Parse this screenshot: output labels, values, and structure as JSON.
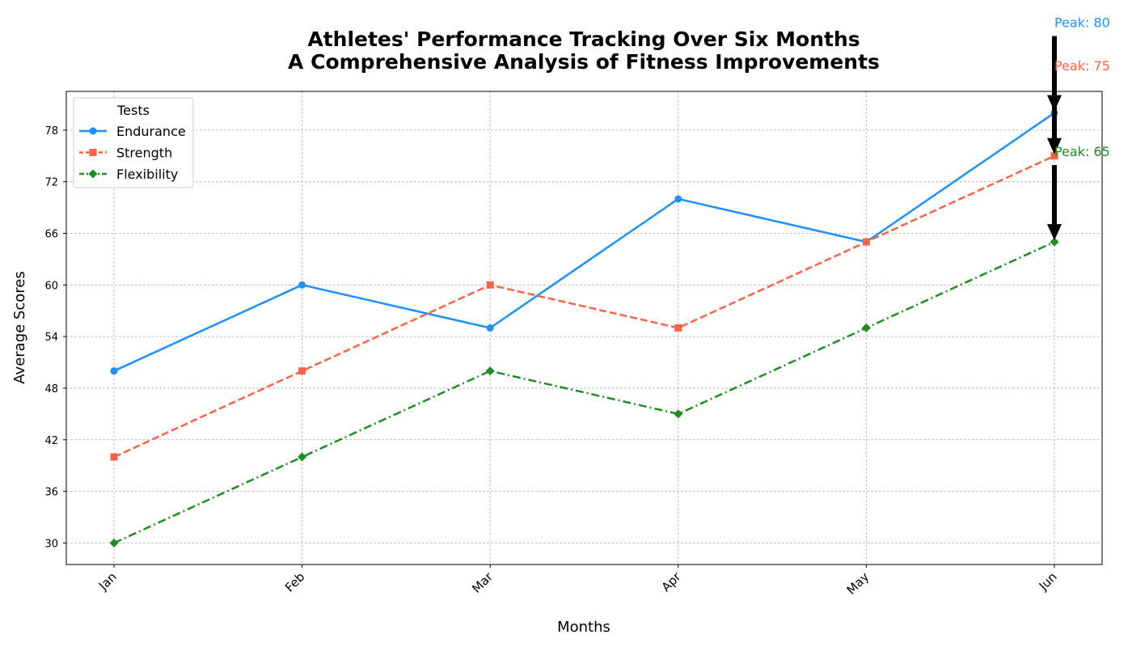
{
  "chart_data": {
    "type": "line",
    "title_line1": "Athletes' Performance Tracking Over Six Months",
    "title_line2": "A Comprehensive Analysis of Fitness Improvements",
    "xlabel": "Months",
    "ylabel": "Average Scores",
    "categories": [
      "Jan",
      "Feb",
      "Mar",
      "Apr",
      "May",
      "Jun"
    ],
    "ylim": [
      27.5,
      82.5
    ],
    "yticks": [
      30,
      36,
      42,
      48,
      54,
      60,
      66,
      72,
      78
    ],
    "grid": true,
    "legend": {
      "title": "Tests",
      "placement": "top-left"
    },
    "series": [
      {
        "name": "Endurance",
        "values": [
          50,
          60,
          55,
          70,
          65,
          80
        ],
        "color": "#1E90FF",
        "dash": "solid",
        "marker": "circle"
      },
      {
        "name": "Strength",
        "values": [
          40,
          50,
          60,
          55,
          65,
          75
        ],
        "color": "#FF6347",
        "dash": "dashed",
        "marker": "square"
      },
      {
        "name": "Flexibility",
        "values": [
          30,
          40,
          50,
          45,
          55,
          65
        ],
        "color": "#228B22",
        "dash": "dashdot",
        "marker": "diamond"
      }
    ],
    "annotations": [
      {
        "text": "Peak: 80",
        "series": "Endurance",
        "x": "Jun",
        "y": 80,
        "color": "#1E90FF"
      },
      {
        "text": "Peak: 75",
        "series": "Strength",
        "x": "Jun",
        "y": 75,
        "color": "#FF6347"
      },
      {
        "text": "Peak: 65",
        "series": "Flexibility",
        "x": "Jun",
        "y": 65,
        "color": "#228B22"
      }
    ]
  }
}
